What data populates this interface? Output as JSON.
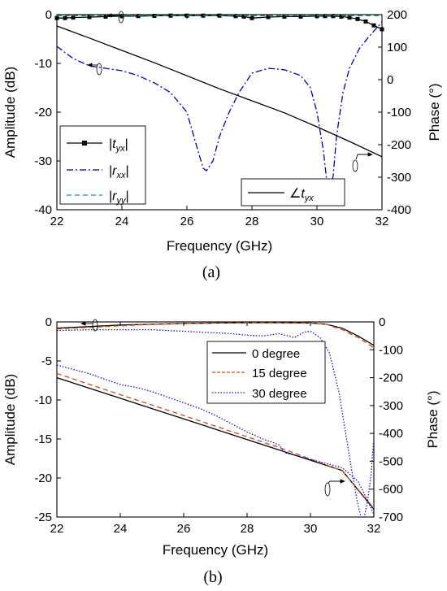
{
  "chart_data": [
    {
      "type": "line",
      "panel_label": "(a)",
      "xlabel": "Frequency (GHz)",
      "ylabel": "Amplitude (dB)",
      "y2label": "Phase (°)",
      "xlim": [
        22,
        32
      ],
      "ylim": [
        -40,
        0
      ],
      "y2lim": [
        -400,
        200
      ],
      "xticks": [
        22,
        24,
        26,
        28,
        30,
        32
      ],
      "yticks": [
        -40,
        -30,
        -20,
        -10,
        0
      ],
      "y2ticks": [
        -400,
        -300,
        -200,
        -100,
        0,
        100,
        200
      ],
      "grid": false,
      "legend_placement": "bottom-left",
      "series": [
        {
          "name": "|tyx|",
          "axis": "left",
          "color": "#000000",
          "dash": "solid",
          "marker": "square",
          "x": [
            22,
            22.25,
            22.5,
            23,
            23.5,
            24,
            24.5,
            25,
            25.5,
            26,
            26.5,
            27,
            27.5,
            27.75,
            28,
            28.5,
            29,
            29.5,
            30,
            30.25,
            30.5,
            30.75,
            31,
            31.25,
            31.5,
            31.75,
            32
          ],
          "y": [
            -0.7,
            -0.7,
            -0.6,
            -0.5,
            -0.4,
            -0.3,
            -0.3,
            -0.25,
            -0.2,
            -0.2,
            -0.2,
            -0.2,
            -0.3,
            -0.4,
            -0.7,
            -0.5,
            -0.4,
            -0.4,
            -0.3,
            -0.3,
            -0.3,
            -0.4,
            -0.6,
            -0.9,
            -1.4,
            -2.2,
            -3.0
          ]
        },
        {
          "name": "|rxx|",
          "axis": "left",
          "color": "#0000b4",
          "dash": "dashdot",
          "marker": "none",
          "x": [
            22,
            22.5,
            23,
            23.5,
            24,
            24.5,
            25,
            25.5,
            26,
            26.3,
            26.5,
            26.6,
            26.8,
            27,
            27.3,
            27.6,
            28,
            28.5,
            29,
            29.5,
            29.8,
            30,
            30.2,
            30.3,
            30.4,
            30.5,
            30.6,
            30.8,
            31,
            31.3,
            31.6,
            32
          ],
          "y": [
            -6.5,
            -9,
            -10.5,
            -11,
            -11.5,
            -12.5,
            -14,
            -16,
            -20,
            -27,
            -31.5,
            -32,
            -30,
            -25,
            -20,
            -16,
            -12,
            -11,
            -11.3,
            -12.5,
            -15,
            -20,
            -28,
            -34,
            -36.5,
            -33,
            -25,
            -16,
            -11,
            -7,
            -4.5,
            -1.5
          ]
        },
        {
          "name": "|ryy|",
          "axis": "left",
          "color": "#14967f",
          "dash": "dashed",
          "marker": "none",
          "x": [
            22,
            32
          ],
          "y": [
            -0.2,
            -0.2
          ]
        },
        {
          "name": "∠tyx",
          "axis": "right",
          "color": "#000000",
          "dash": "solid",
          "marker": "none",
          "x": [
            22,
            23,
            24,
            25,
            26,
            27,
            28,
            29,
            30,
            31,
            32
          ],
          "y": [
            165,
            128,
            90,
            52,
            12,
            -28,
            -65,
            -102,
            -145,
            -190,
            -237
          ]
        }
      ],
      "legend_left": [
        "|tyx|",
        "|rxx|",
        "|ryy|"
      ],
      "legend_right": [
        "∠tyx"
      ]
    },
    {
      "type": "line",
      "panel_label": "(b)",
      "xlabel": "Frequency (GHz)",
      "ylabel": "Amplitude (dB)",
      "y2label": "Phase (°)",
      "xlim": [
        22,
        32
      ],
      "ylim": [
        -25,
        0
      ],
      "y2lim": [
        -700,
        0
      ],
      "xticks": [
        22,
        24,
        26,
        28,
        30,
        32
      ],
      "yticks": [
        -25,
        -20,
        -15,
        -10,
        -5,
        0
      ],
      "y2ticks": [
        -700,
        -600,
        -500,
        -400,
        -300,
        -200,
        -100,
        0
      ],
      "grid": false,
      "legend_placement": "top-right",
      "series": [
        {
          "name": "0 degree",
          "group": "amplitude",
          "color": "#000000",
          "dash": "solid",
          "x": [
            22,
            23,
            24,
            25,
            26,
            27,
            28,
            29,
            30,
            30.5,
            31,
            31.5,
            32
          ],
          "y": [
            -0.8,
            -0.6,
            -0.4,
            -0.3,
            -0.2,
            -0.15,
            -0.1,
            -0.1,
            -0.15,
            -0.3,
            -0.8,
            -1.8,
            -3.0
          ]
        },
        {
          "name": "15 degree",
          "group": "amplitude",
          "color": "#c8501e",
          "dash": "dashed",
          "x": [
            22,
            23,
            24,
            25,
            26,
            27,
            28,
            29,
            30,
            30.5,
            31,
            31.5,
            32
          ],
          "y": [
            -0.9,
            -0.7,
            -0.5,
            -0.3,
            -0.2,
            -0.15,
            -0.1,
            -0.1,
            -0.15,
            -0.3,
            -1.0,
            -2.0,
            -3.3
          ]
        },
        {
          "name": "30 degree",
          "group": "amplitude",
          "color": "#1414c8",
          "dash": "dotted",
          "x": [
            22,
            23,
            24,
            25,
            26,
            27,
            27.5,
            28,
            28.5,
            29,
            29.5,
            29.8,
            30,
            30.3,
            30.6,
            30.9,
            31.1,
            31.3,
            31.5,
            31.6,
            31.7,
            31.8,
            31.9,
            32
          ],
          "y": [
            -1.1,
            -1.0,
            -1.0,
            -1.0,
            -1.2,
            -1.4,
            -1.5,
            -1.7,
            -1.8,
            -1.5,
            -2.0,
            -1.3,
            -1.2,
            -2.0,
            -4.0,
            -9.0,
            -14.0,
            -19.0,
            -23.5,
            -25.0,
            -25.0,
            -23.0,
            -20.0,
            -15.0
          ]
        },
        {
          "name": "0 degree",
          "group": "phase",
          "color": "#000000",
          "dash": "solid",
          "x": [
            22,
            23,
            24,
            25,
            26,
            27,
            28,
            29,
            30,
            31,
            32
          ],
          "y": [
            -200,
            -237,
            -274,
            -311,
            -348,
            -385,
            -422,
            -459,
            -496,
            -533,
            -672
          ]
        },
        {
          "name": "15 degree",
          "group": "phase",
          "color": "#c8501e",
          "dash": "dashed",
          "x": [
            22,
            23,
            24,
            25,
            26,
            27,
            28,
            29,
            30,
            31,
            32
          ],
          "y": [
            -185,
            -223,
            -261,
            -298,
            -336,
            -374,
            -412,
            -450,
            -492,
            -534,
            -668
          ]
        },
        {
          "name": "30 degree",
          "group": "phase",
          "color": "#1414c8",
          "dash": "dotted",
          "x": [
            22,
            22.5,
            23,
            23.5,
            24,
            24.5,
            25,
            25.5,
            26,
            26.5,
            27,
            27.5,
            28,
            28.5,
            29,
            29.2,
            29.5,
            30,
            30.5,
            31,
            31.5,
            31.8,
            32
          ],
          "y": [
            -155,
            -170,
            -185,
            -205,
            -225,
            -235,
            -250,
            -270,
            -290,
            -310,
            -335,
            -365,
            -395,
            -420,
            -440,
            -470,
            -478,
            -493,
            -508,
            -523,
            -572,
            -640,
            -690
          ]
        }
      ],
      "legend": [
        "0 degree",
        "15 degree",
        "30 degree"
      ]
    }
  ]
}
